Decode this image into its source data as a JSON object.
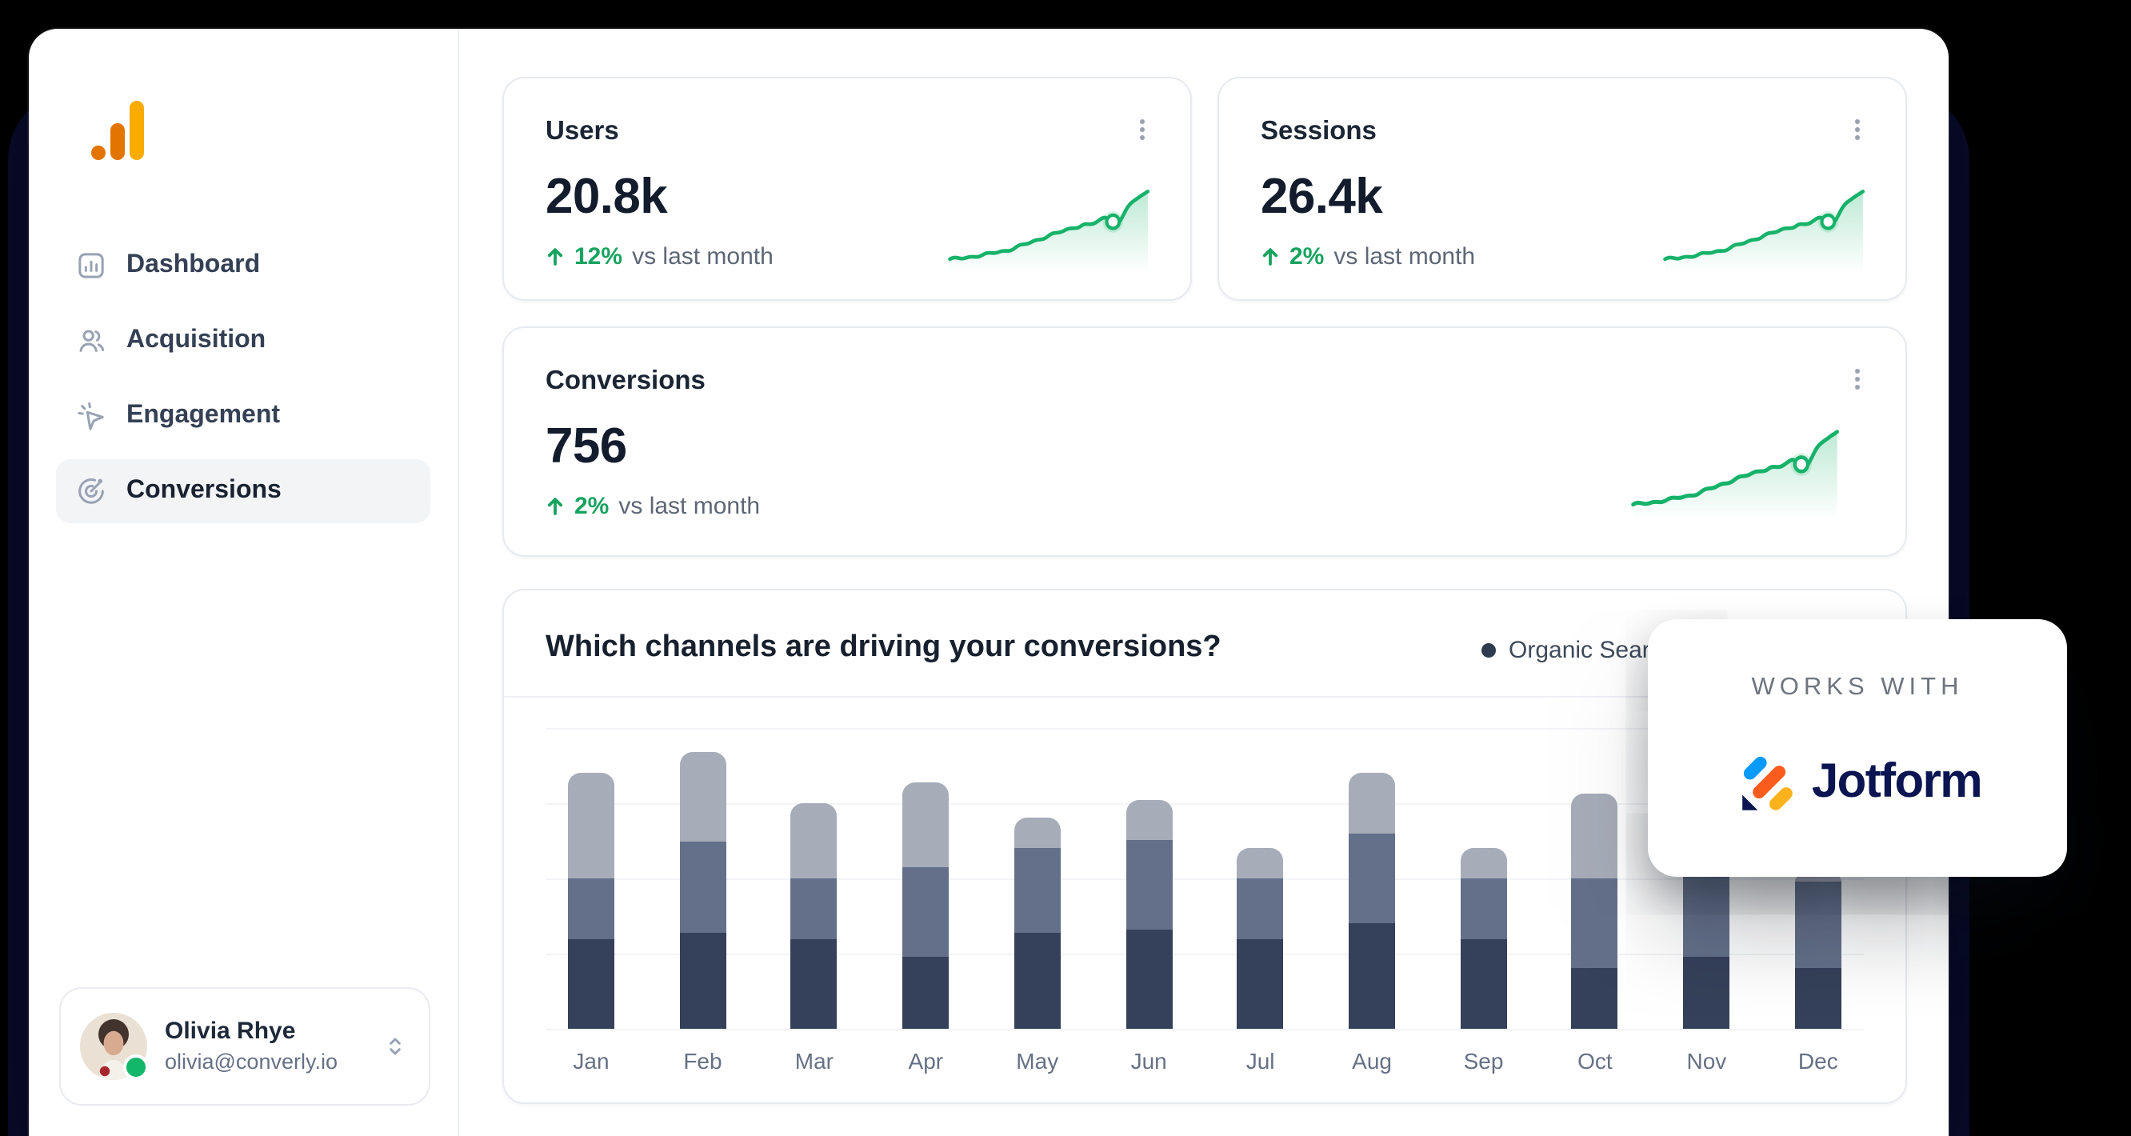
{
  "sidebar": {
    "logo": {
      "name": "analytics-logo",
      "colors": {
        "orange": "#e37400",
        "amber": "#f9ab00"
      }
    },
    "items": [
      {
        "label": "Dashboard",
        "icon": "dashboard-icon",
        "active": false
      },
      {
        "label": "Acquisition",
        "icon": "users-icon",
        "active": false
      },
      {
        "label": "Engagement",
        "icon": "megaphone-icon",
        "active": false
      },
      {
        "label": "Conversions",
        "icon": "goal-icon",
        "active": true
      }
    ],
    "profile": {
      "name": "Olivia Rhye",
      "email": "olivia@converly.io",
      "status": "online",
      "chevron_icon": "chevron-updown-icon"
    }
  },
  "kpi_cards": [
    {
      "title": "Users",
      "value": "20.8k",
      "delta": "12%",
      "delta_direction": "up",
      "comparison": "vs last month",
      "menu_icon": "kebab-vertical-icon",
      "sparkline": "rising-green"
    },
    {
      "title": "Sessions",
      "value": "26.4k",
      "delta": "2%",
      "delta_direction": "up",
      "comparison": "vs last month",
      "menu_icon": "kebab-vertical-icon",
      "sparkline": "rising-green"
    },
    {
      "title": "Conversions",
      "value": "756",
      "delta": "2%",
      "delta_direction": "up",
      "comparison": "vs last month",
      "menu_icon": "kebab-vertical-icon",
      "sparkline": "rising-green"
    }
  ],
  "chart_card": {
    "title": "Which channels are driving your conversions?",
    "menu_icon": "kebab-vertical-icon"
  },
  "chart_data": {
    "type": "bar",
    "stacked": true,
    "categories": [
      "Jan",
      "Feb",
      "Mar",
      "Apr",
      "May",
      "Jun",
      "Jul",
      "Aug",
      "Sep",
      "Oct",
      "Nov",
      "Dec"
    ],
    "series": [
      {
        "name": "Organic Search",
        "color": "#35405a",
        "values": [
          30,
          32,
          30,
          24,
          32,
          33,
          30,
          35,
          30,
          20,
          24,
          20
        ]
      },
      {
        "name": "",
        "color": "#64708a",
        "values": [
          20,
          30,
          20,
          30,
          28,
          30,
          20,
          30,
          20,
          30,
          30,
          29
        ]
      },
      {
        "name": "",
        "color": "#a7acb9",
        "values": [
          35,
          30,
          25,
          28,
          10,
          13,
          10,
          20,
          10,
          28,
          8,
          2
        ]
      }
    ],
    "legend": [
      {
        "label": "Organic Search",
        "color": "#2e3a4e"
      },
      {
        "label": "",
        "color": "#4e5b73"
      }
    ],
    "xlabel": "",
    "ylabel": "",
    "ylim": [
      0,
      110
    ],
    "gridline_step": 25,
    "grid": true,
    "legend_position": "top-right",
    "note_axis": "no numeric y-axis labels shown; legend partially hidden by popup"
  },
  "overlay": {
    "eyebrow": "WORKS WITH",
    "brand": "Jotform",
    "brand_icon": "jotform-logo-icon"
  },
  "colors": {
    "background": "#000000",
    "backdrop_navy": "#0a0c2f",
    "surface": "#ffffff",
    "card_border": "#e7eaf0",
    "text_primary": "#16202e",
    "text_secondary": "#667085",
    "success_green": "#17a35f",
    "spark_green": "#17b26a",
    "nav_active_bg": "#f3f4f6",
    "icon_gray": "#98a2b3",
    "bar_dark": "#35405a",
    "bar_mid": "#64708a",
    "bar_light": "#a7acb9",
    "status_online": "#12b76a",
    "jotform_navy": "#0a1551",
    "jotform_blue": "#0a9bfa",
    "jotform_orange": "#fa5c1d",
    "jotform_amber": "#fbb21d"
  }
}
